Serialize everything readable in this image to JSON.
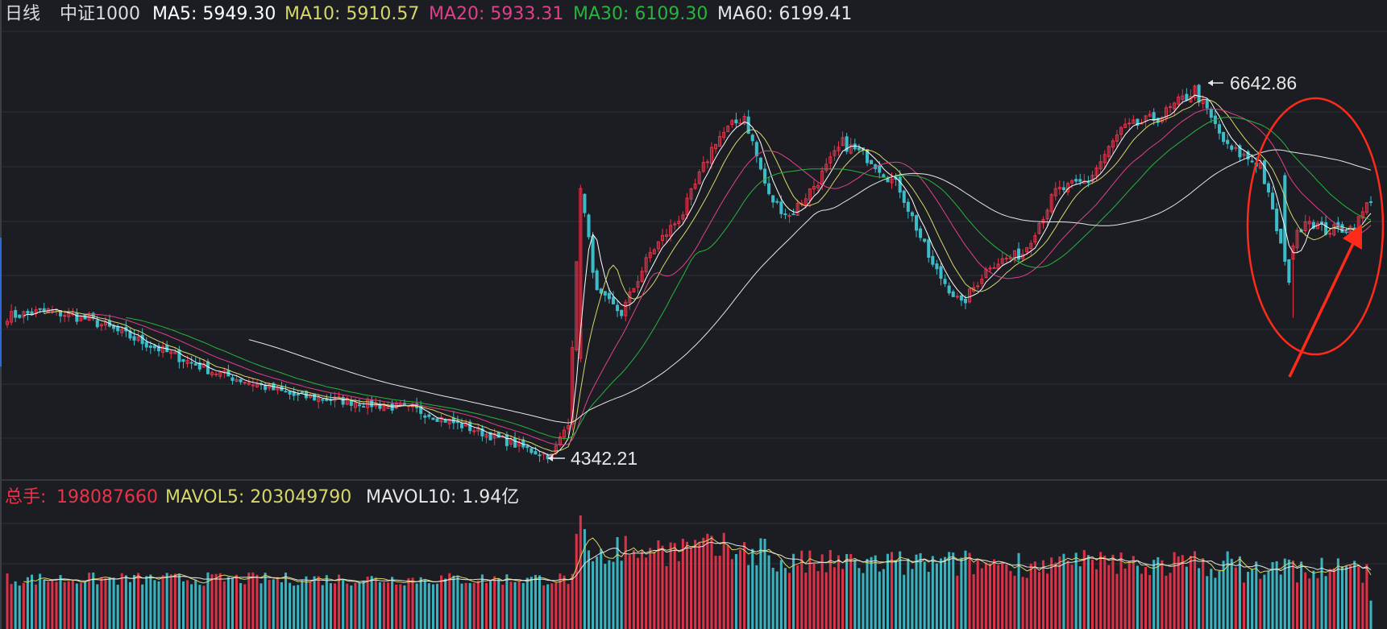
{
  "header": {
    "period": "日线",
    "index_name": "中证1000",
    "ma5_label": "MA5: 5949.30",
    "ma10_label": "MA10: 5910.57",
    "ma20_label": "MA20: 5933.31",
    "ma30_label": "MA30: 6109.30",
    "ma60_label": "MA60: 6199.41"
  },
  "volume_header": {
    "total_label": "总手: ",
    "total_value": "198087660",
    "mavol5_label": "MAVOL5: 203049790",
    "mavol10_label": "MAVOL10: 1.94亿"
  },
  "annotations": {
    "high_label": "6642.86",
    "low_label": "4342.21"
  },
  "colors": {
    "up": "#e8334a",
    "down": "#3cbcc8",
    "ma5": "#ffffff",
    "ma10": "#d6d669",
    "ma20": "#e0408a",
    "ma30": "#28b43c",
    "ma60": "#e6e6e6",
    "highlight": "#ff2a1a",
    "grid": "#2c3038"
  },
  "chart_data": [
    {
      "type": "candlestick",
      "title": "中证1000 日线",
      "y_range_approx": [
        4200,
        6750
      ],
      "high_point": {
        "value": 6642.86
      },
      "low_point": {
        "value": 4342.21
      },
      "series": [
        {
          "name": "MA5",
          "last": 5949.3
        },
        {
          "name": "MA10",
          "last": 5910.57
        },
        {
          "name": "MA20",
          "last": 5933.31
        },
        {
          "name": "MA30",
          "last": 6109.3
        },
        {
          "name": "MA60",
          "last": 6199.41
        }
      ],
      "close_anchors_approx": [
        [
          0,
          5210
        ],
        [
          10,
          5245
        ],
        [
          20,
          5190
        ],
        [
          35,
          5030
        ],
        [
          50,
          4870
        ],
        [
          70,
          4720
        ],
        [
          85,
          4680
        ],
        [
          100,
          4630
        ],
        [
          115,
          4500
        ],
        [
          128,
          4380
        ],
        [
          133,
          4345
        ],
        [
          137,
          4560
        ],
        [
          140,
          6000
        ],
        [
          144,
          5350
        ],
        [
          150,
          5230
        ],
        [
          157,
          5600
        ],
        [
          165,
          5850
        ],
        [
          173,
          6300
        ],
        [
          180,
          6450
        ],
        [
          186,
          5950
        ],
        [
          191,
          5830
        ],
        [
          198,
          6050
        ],
        [
          204,
          6280
        ],
        [
          211,
          6180
        ],
        [
          218,
          6000
        ],
        [
          226,
          5520
        ],
        [
          233,
          5280
        ],
        [
          240,
          5530
        ],
        [
          248,
          5600
        ],
        [
          256,
          5980
        ],
        [
          264,
          6050
        ],
        [
          272,
          6360
        ],
        [
          282,
          6450
        ],
        [
          290,
          6610
        ],
        [
          298,
          6250
        ],
        [
          306,
          6150
        ],
        [
          312,
          5550
        ],
        [
          317,
          5820
        ],
        [
          322,
          5740
        ],
        [
          329,
          5760
        ],
        [
          333,
          5940
        ]
      ]
    },
    {
      "type": "bar",
      "title": "总手",
      "series": [
        {
          "name": "总手",
          "last": 198087660
        },
        {
          "name": "MAVOL5",
          "last": 203049790
        },
        {
          "name": "MAVOL10",
          "last": 194000000
        }
      ]
    }
  ]
}
